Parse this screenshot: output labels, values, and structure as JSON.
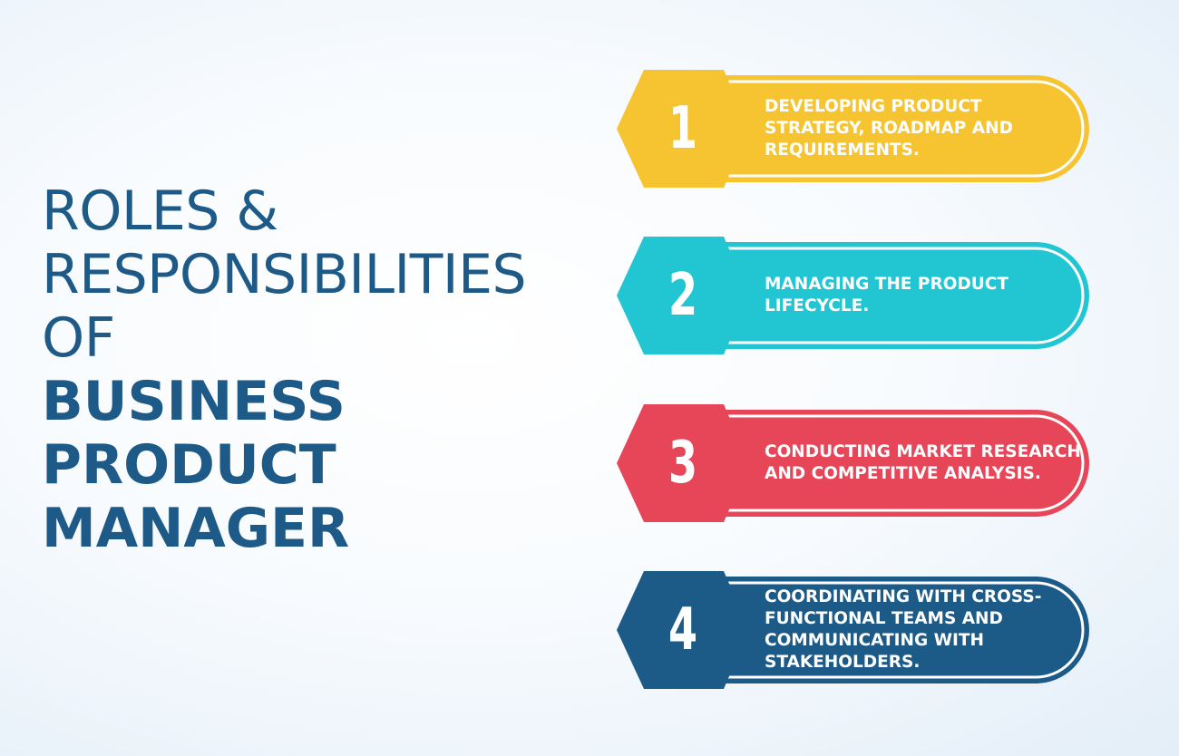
{
  "heading": {
    "line1": "ROLES &",
    "line2": "RESPONSIBILITIES",
    "line3": "OF",
    "line4": "BUSINESS",
    "line5": "PRODUCT",
    "line6": "MANAGER"
  },
  "items": [
    {
      "number": "1",
      "text": "DEVELOPING PRODUCT STRATEGY, ROADMAP AND REQUIREMENTS.",
      "color": "#f6c431",
      "dark": "#e8af1c"
    },
    {
      "number": "2",
      "text": "MANAGING THE PRODUCT LIFECYCLE.",
      "color": "#22c6d3",
      "dark": "#15b2bf"
    },
    {
      "number": "3",
      "text": "CONDUCTING MARKET RESEARCH AND COMPETITIVE ANALYSIS.",
      "color": "#e74558",
      "dark": "#d8374a"
    },
    {
      "number": "4",
      "text": "COORDINATING WITH CROSS-FUNCTIONAL TEAMS AND COMMUNICATING WITH STAKEHOLDERS.",
      "color": "#1c5a88",
      "dark": "#144a74"
    }
  ],
  "colors": {
    "heading": "#1d5a88",
    "background": "#f4f8fc"
  }
}
